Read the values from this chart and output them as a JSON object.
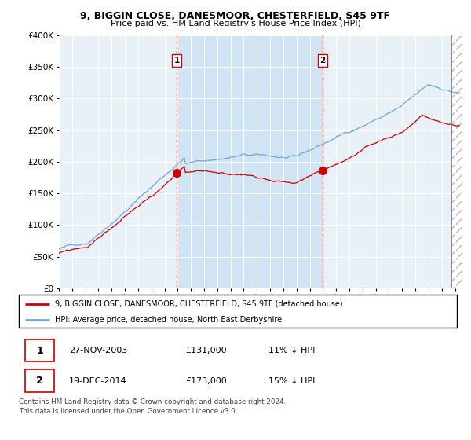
{
  "title": "9, BIGGIN CLOSE, DANESMOOR, CHESTERFIELD, S45 9TF",
  "subtitle": "Price paid vs. HM Land Registry's House Price Index (HPI)",
  "ylim": [
    0,
    400000
  ],
  "xlim_start": 1995.0,
  "xlim_end": 2025.5,
  "transactions": [
    {
      "date_num": 2003.92,
      "price": 131000,
      "label": "1"
    },
    {
      "date_num": 2014.97,
      "price": 173000,
      "label": "2"
    }
  ],
  "sale1": {
    "date": "27-NOV-2003",
    "price": "£131,000",
    "pct": "11%",
    "dir": "↓",
    "label": "1"
  },
  "sale2": {
    "date": "19-DEC-2014",
    "price": "£173,000",
    "pct": "15%",
    "dir": "↓",
    "label": "2"
  },
  "legend_line1": "9, BIGGIN CLOSE, DANESMOOR, CHESTERFIELD, S45 9TF (detached house)",
  "legend_line2": "HPI: Average price, detached house, North East Derbyshire",
  "footer": "Contains HM Land Registry data © Crown copyright and database right 2024.\nThis data is licensed under the Open Government Licence v3.0.",
  "hpi_color": "#6aa8d8",
  "price_color": "#cc0000",
  "dashed_vline_color": "#cc0000",
  "chart_bg": "#e8f0f8",
  "highlight_bg": "#d0e4f4",
  "grid_color": "#ffffff",
  "hatch_color": "#bbbbbb"
}
